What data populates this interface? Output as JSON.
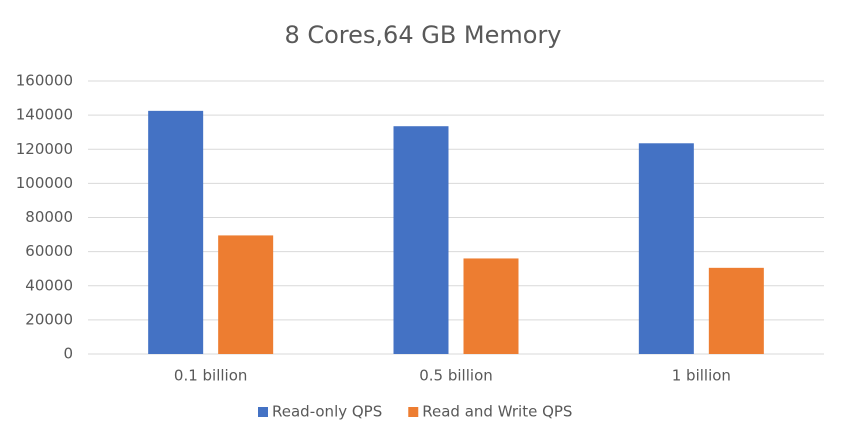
{
  "chart_data": {
    "type": "bar",
    "title": "8 Cores,64 GB Memory",
    "categories": [
      "0.1 billion",
      "0.5 billion",
      "1  billion"
    ],
    "series": [
      {
        "name": "Read-only QPS",
        "color": "#4472c4",
        "values": [
          142500,
          133500,
          123500
        ]
      },
      {
        "name": "Read and Write QPS",
        "color": "#ed7d31",
        "values": [
          69500,
          56000,
          50500
        ]
      }
    ],
    "ylim": [
      0,
      160000
    ],
    "yticks": [
      0,
      20000,
      40000,
      60000,
      80000,
      100000,
      120000,
      140000,
      160000
    ],
    "grid": true,
    "legend": "bottom"
  }
}
